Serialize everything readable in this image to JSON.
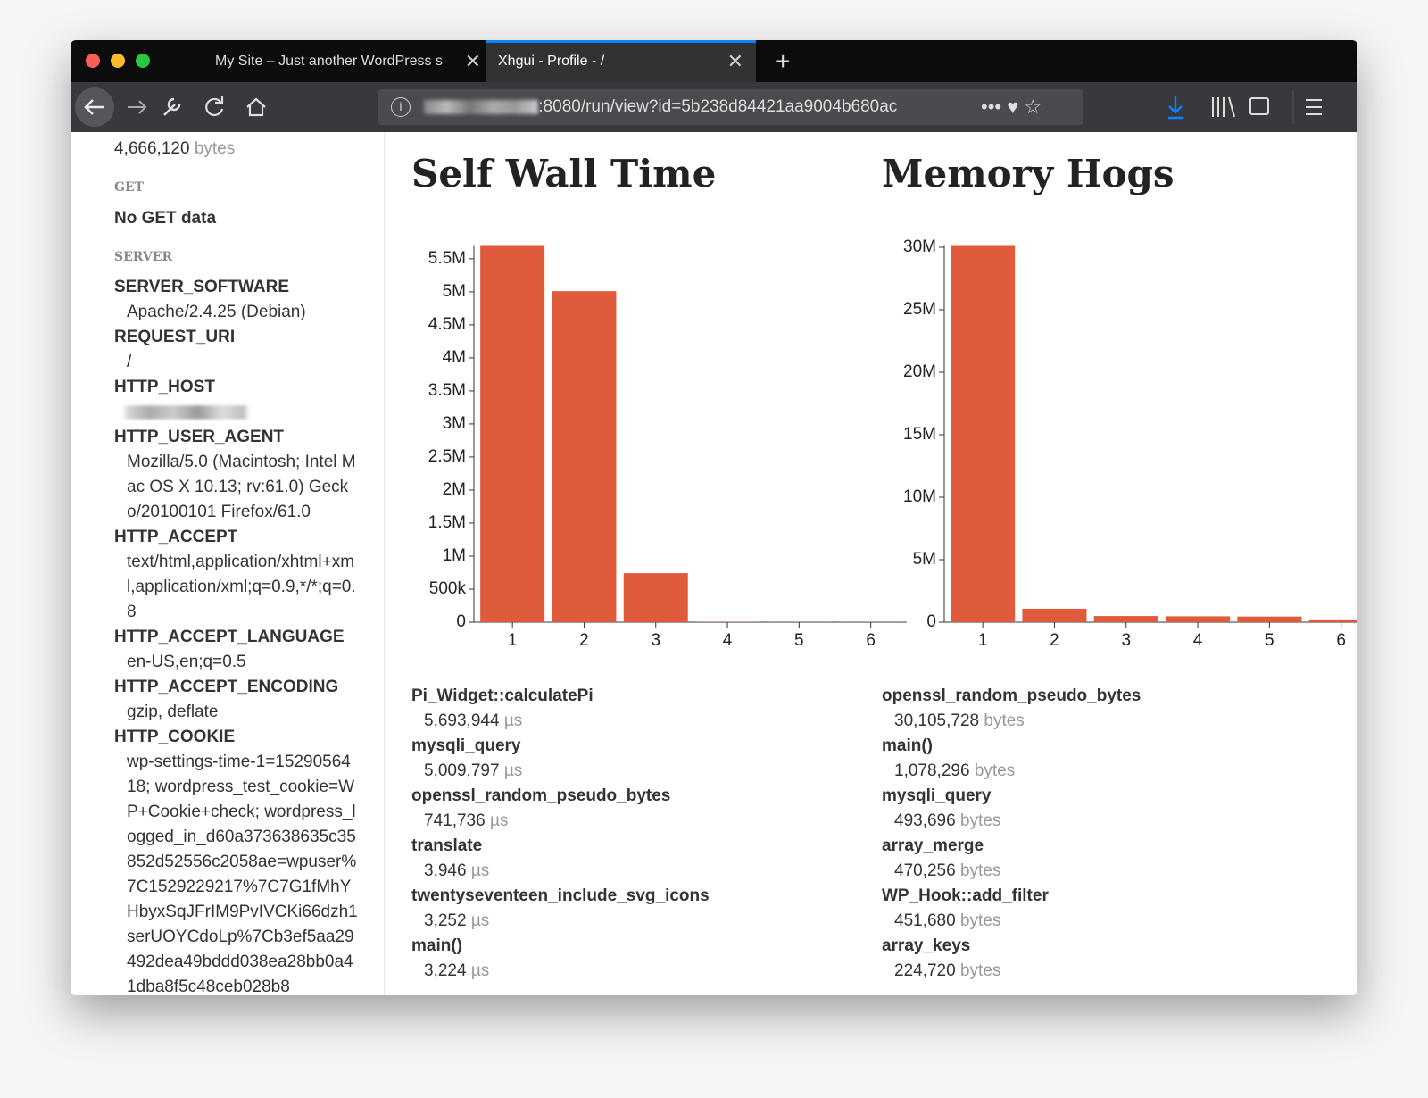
{
  "browser": {
    "tabs": [
      "My Site – Just another WordPress s",
      "Xhgui - Profile - /"
    ],
    "url": ":8080/run/view?id=5b238d84421aa9004b680ac"
  },
  "sidebar": {
    "top_value": "4,666,120",
    "top_unit": "bytes",
    "sections": [
      {
        "heading": "GET",
        "note": "No GET data"
      },
      {
        "heading": "SERVER",
        "entries": [
          {
            "key": "SERVER_SOFTWARE",
            "value": "Apache/2.4.25 (Debian)"
          },
          {
            "key": "REQUEST_URI",
            "value": "/"
          },
          {
            "key": "HTTP_HOST"
          },
          {
            "key": "HTTP_USER_AGENT",
            "value": "Mozilla/5.0 (Macintosh; Intel Mac OS X 10.13; rv:61.0) Gecko/20100101 Firefox/61.0"
          },
          {
            "key": "HTTP_ACCEPT",
            "value": "text/html,application/xhtml+xml,application/xml;q=0.9,*/*;q=0.8"
          },
          {
            "key": "HTTP_ACCEPT_LANGUAGE",
            "value": "en-US,en;q=0.5"
          },
          {
            "key": "HTTP_ACCEPT_ENCODING",
            "value": "gzip, deflate"
          },
          {
            "key": "HTTP_COOKIE",
            "value": "wp-settings-time-1=1529056418; wordpress_test_cookie=WP+Cookie+check; wordpress_logged_in_d60a373638635c35852d52556c2058ae=wpuser%7C1529229217%7C7G1fMhYHbyxSqJFrIM9PvIVCKi66dzh1serUOYCdoLp%7Cb3ef5aa29492dea49bddd038ea28bb0a41dba8f5c48ceb028b8"
          }
        ]
      }
    ]
  },
  "chart_data": [
    {
      "type": "bar",
      "title": "Self Wall Time",
      "categories": [
        "1",
        "2",
        "3",
        "4",
        "5",
        "6"
      ],
      "values": [
        5693944,
        5009797,
        741736,
        3946,
        3252,
        3224
      ],
      "color": "#e05b3b",
      "ylim": [
        0,
        5693944
      ],
      "yticks": [
        0,
        {
          "value": 500000,
          "label": "500k"
        },
        {
          "value": 1000000,
          "label": "1M"
        },
        {
          "value": 1500000,
          "label": "1.5M"
        },
        {
          "value": 2000000,
          "label": "2M"
        },
        {
          "value": 2500000,
          "label": "2.5M"
        },
        {
          "value": 3000000,
          "label": "3M"
        },
        {
          "value": 3500000,
          "label": "3.5M"
        },
        {
          "value": 4000000,
          "label": "4M"
        },
        {
          "value": 4500000,
          "label": "4.5M"
        },
        {
          "value": 5000000,
          "label": "5M"
        },
        {
          "value": 5500000,
          "label": "5.5M"
        }
      ]
    },
    {
      "type": "bar",
      "title": "Memory Hogs",
      "categories": [
        "1",
        "2",
        "3",
        "4",
        "5",
        "6"
      ],
      "values": [
        30105728,
        1078296,
        493696,
        470256,
        451680,
        224720
      ],
      "color": "#e05b3b",
      "ylim": [
        0,
        30105728
      ],
      "yticks": [
        0,
        {
          "value": 5000000,
          "label": "5M"
        },
        {
          "value": 10000000,
          "label": "10M"
        },
        {
          "value": 15000000,
          "label": "15M"
        },
        {
          "value": 20000000,
          "label": "20M"
        },
        {
          "value": 25000000,
          "label": "25M"
        },
        {
          "value": 30000000,
          "label": "30M"
        }
      ]
    }
  ],
  "lists": [
    {
      "unit": "µs",
      "items": [
        {
          "name": "Pi_Widget::calculatePi",
          "value": "5,693,944"
        },
        {
          "name": "mysqli_query",
          "value": "5,009,797"
        },
        {
          "name": "openssl_random_pseudo_bytes",
          "value": "741,736"
        },
        {
          "name": "translate",
          "value": "3,946"
        },
        {
          "name": "twentyseventeen_include_svg_icons",
          "value": "3,252"
        },
        {
          "name": "main()",
          "value": "3,224"
        }
      ]
    },
    {
      "unit": "bytes",
      "items": [
        {
          "name": "openssl_random_pseudo_bytes",
          "value": "30,105,728"
        },
        {
          "name": "main()",
          "value": "1,078,296"
        },
        {
          "name": "mysqli_query",
          "value": "493,696"
        },
        {
          "name": "array_merge",
          "value": "470,256"
        },
        {
          "name": "WP_Hook::add_filter",
          "value": "451,680"
        },
        {
          "name": "array_keys",
          "value": "224,720"
        }
      ]
    }
  ]
}
